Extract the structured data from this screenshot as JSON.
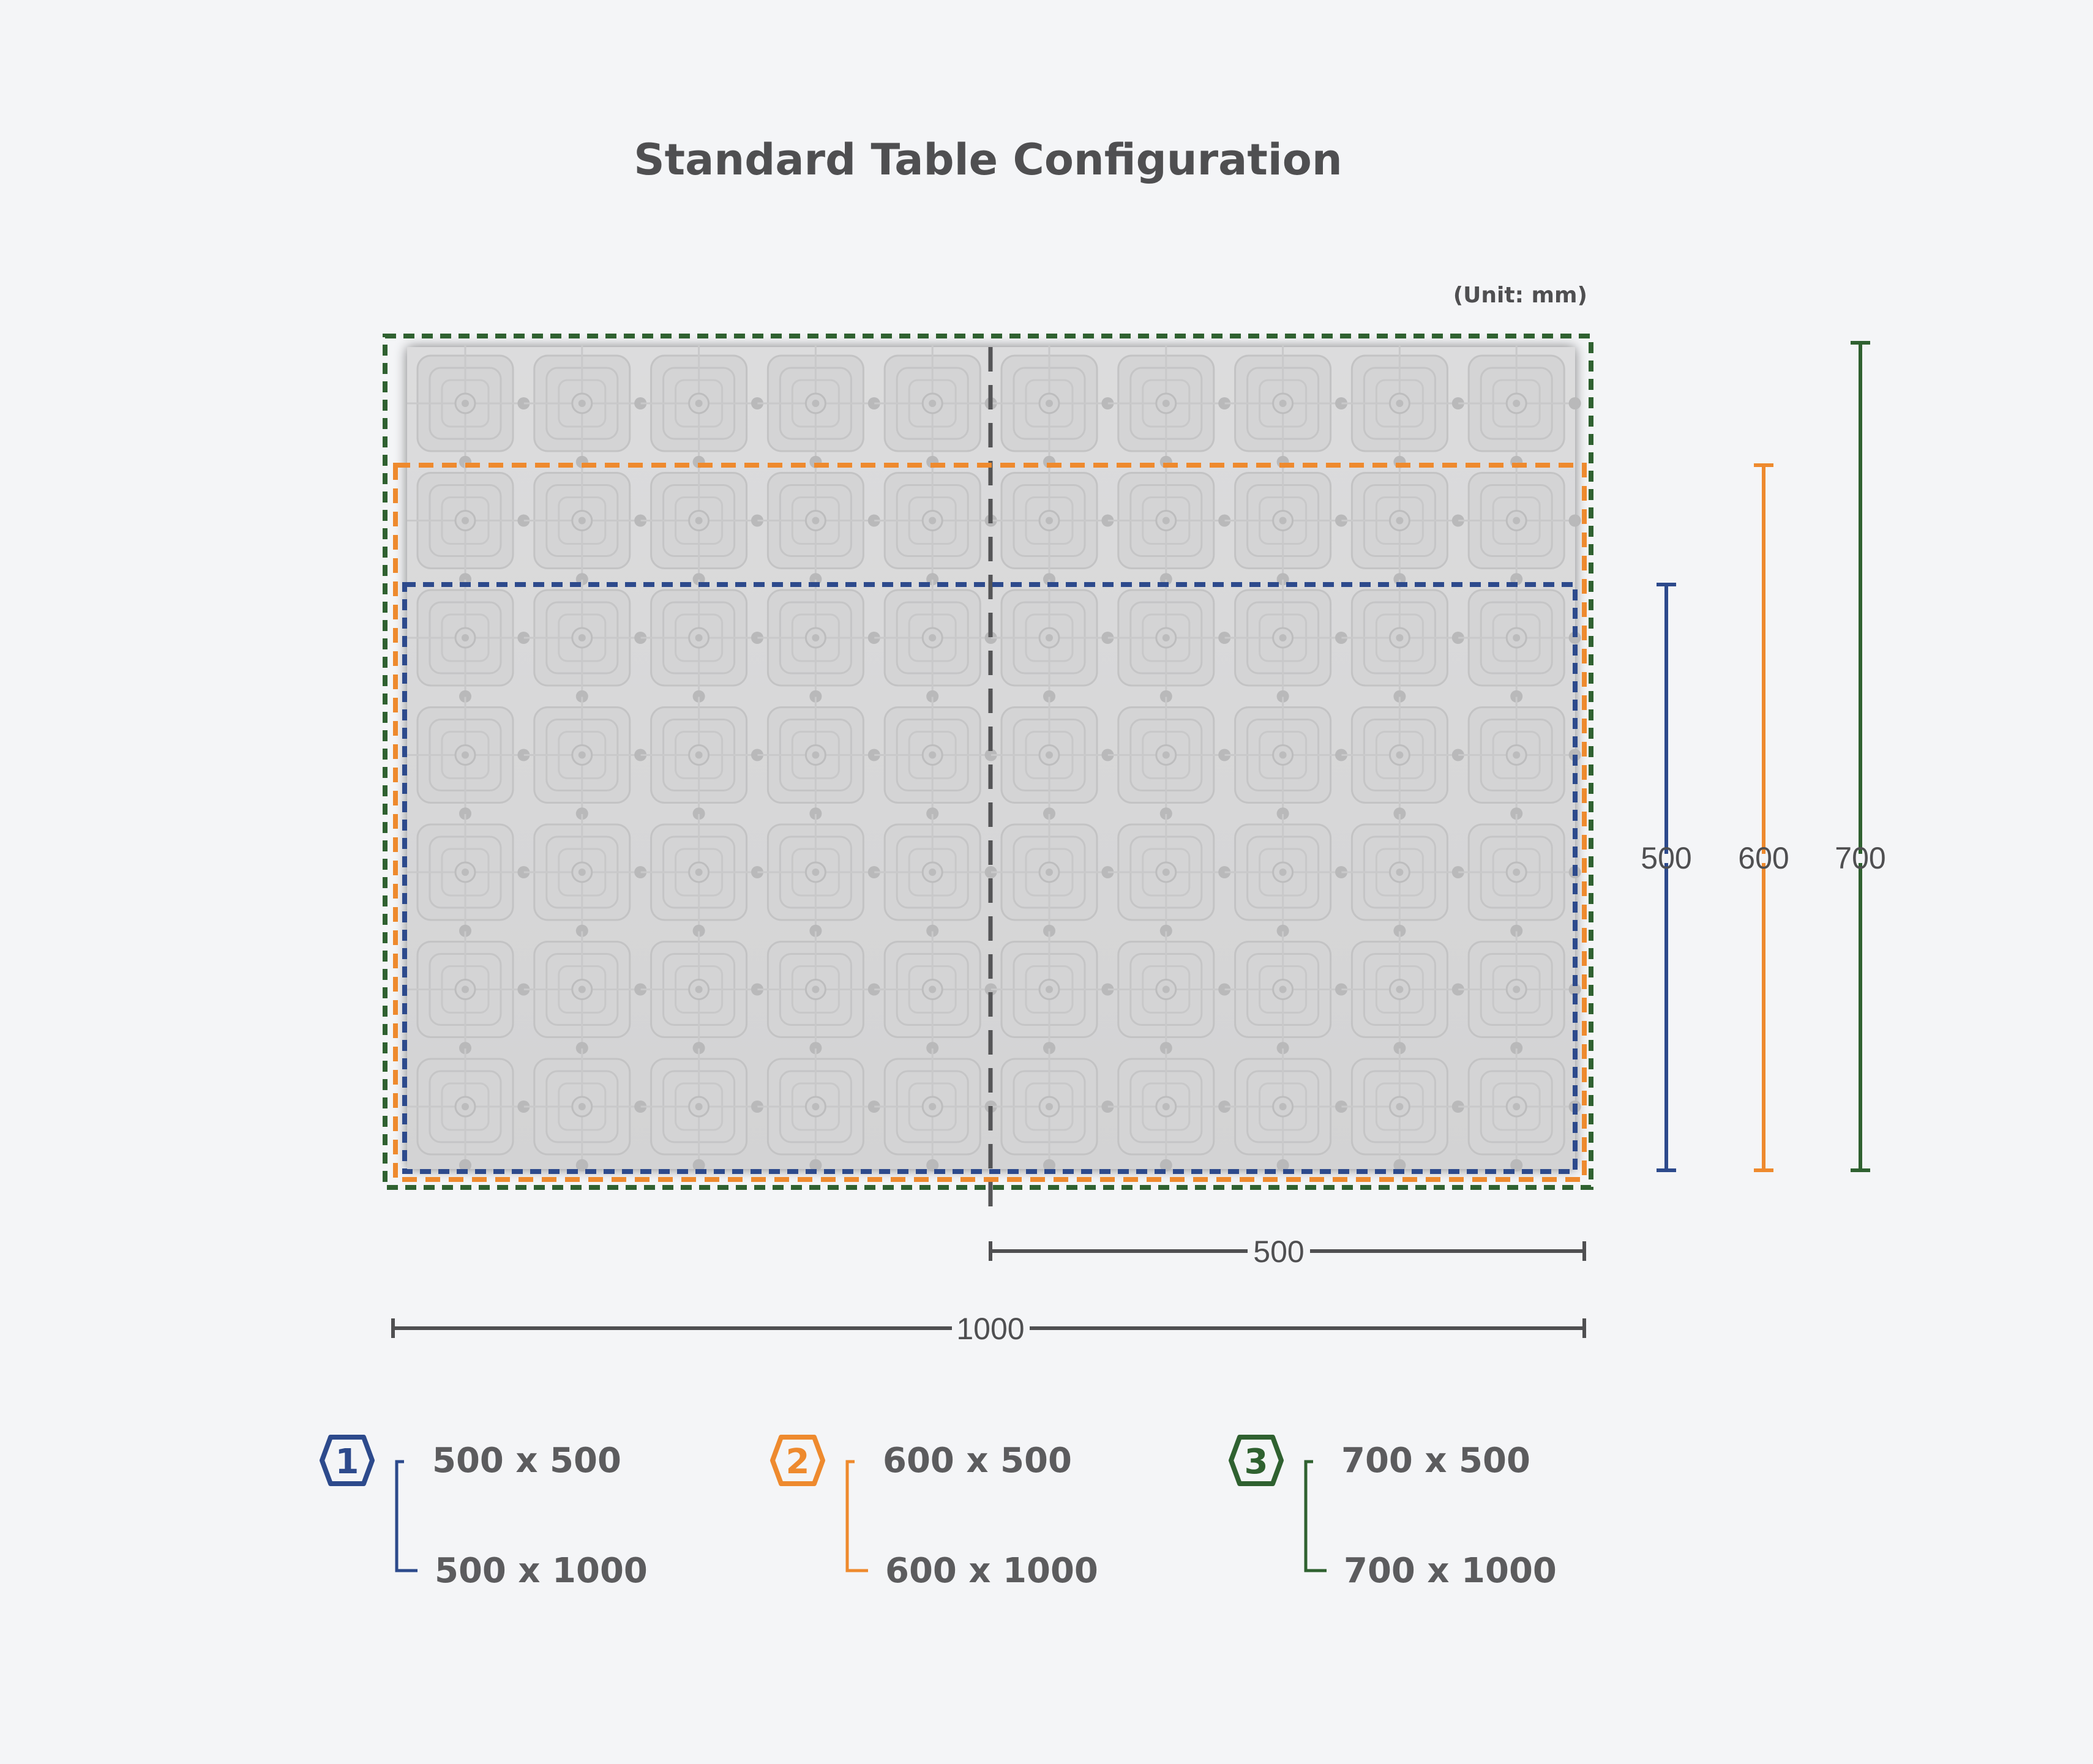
{
  "title": "Standard Table Configuration",
  "unit": "(Unit: mm)",
  "colors": {
    "blue": "#2d4a8c",
    "orange": "#ee8a2e",
    "green": "#2f6130",
    "dimension": "#4f4f51",
    "plate": "#d8d8d9"
  },
  "dimensions": {
    "blue_height": "500",
    "orange_height": "600",
    "green_height": "700",
    "half_width": "500",
    "full_width": "1000"
  },
  "legend": [
    {
      "number": "1",
      "color": "#2d4a8c",
      "option_a": "500 x 500",
      "option_b": "500 x 1000"
    },
    {
      "number": "2",
      "color": "#ee8a2e",
      "option_a": "600 x 500",
      "option_b": "600 x 1000"
    },
    {
      "number": "3",
      "color": "#2f6130",
      "option_a": "700 x 500",
      "option_b": "700 x 1000"
    }
  ]
}
